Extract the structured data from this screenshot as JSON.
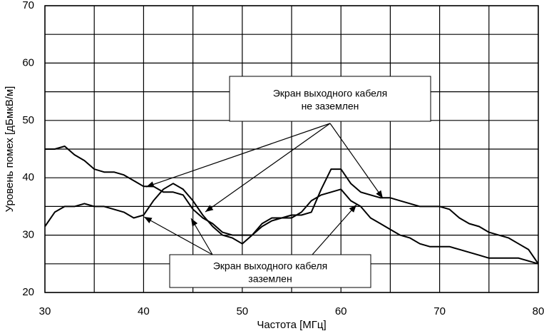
{
  "chart_data": {
    "type": "line",
    "x_label": "Частота [МГц]",
    "y_label": "Уровень помех [дБмкВ/м]",
    "x": [
      30,
      31,
      32,
      33,
      34,
      35,
      36,
      37,
      38,
      39,
      40,
      41,
      42,
      43,
      44,
      45,
      46,
      47,
      48,
      49,
      50,
      51,
      52,
      53,
      54,
      55,
      56,
      57,
      58,
      59,
      60,
      61,
      62,
      63,
      64,
      65,
      66,
      67,
      68,
      69,
      70,
      71,
      72,
      73,
      74,
      75,
      76,
      77,
      78,
      79,
      80
    ],
    "series": [
      {
        "color": "#000000",
        "values": [
          45,
          45,
          45.5,
          44,
          43,
          41.5,
          41,
          41,
          40.5,
          39.5,
          38.5,
          38.5,
          37.5,
          37.5,
          37,
          34.5,
          33,
          32,
          30.5,
          30,
          30,
          30,
          31.5,
          32.5,
          33,
          33.5,
          33.5,
          34,
          38,
          41.5,
          41.5,
          39,
          37.5,
          37,
          36.5,
          36.5,
          36,
          35.5,
          35,
          35,
          35,
          34.5,
          33,
          32,
          31.5,
          30.5,
          30,
          29.5,
          28.5,
          27.5,
          25
        ]
      },
      {
        "color": "#000000",
        "values": [
          31.5,
          34,
          35,
          35,
          35.5,
          35,
          35,
          34.5,
          34,
          33,
          33.5,
          36,
          38,
          39,
          38,
          36,
          33.5,
          31.5,
          30,
          29.5,
          28.5,
          30,
          32,
          33,
          33,
          33,
          34,
          36,
          37,
          37.5,
          38,
          36,
          35,
          33,
          32,
          31,
          30,
          29.5,
          28.5,
          28,
          28,
          28,
          27.5,
          27,
          26.5,
          26,
          26,
          26,
          26,
          25.5,
          25
        ]
      }
    ],
    "xlim": [
      30,
      80
    ],
    "xticks": [
      30,
      40,
      50,
      60,
      70,
      80
    ],
    "xgrid": [
      30,
      35,
      40,
      45,
      50,
      55,
      60,
      65,
      70,
      75,
      80
    ],
    "ylim": [
      20,
      70
    ],
    "yticks": [
      20,
      30,
      40,
      50,
      60,
      70
    ],
    "ygrid": [
      20,
      25,
      30,
      35,
      40,
      45,
      50,
      55,
      60,
      65,
      70
    ],
    "grid": true,
    "annotations": [
      {
        "lines": [
          "Экран выходного кабеля",
          "не заземлен"
        ]
      },
      {
        "lines": [
          "Экран выходного кабеля",
          "заземлен"
        ]
      }
    ]
  }
}
